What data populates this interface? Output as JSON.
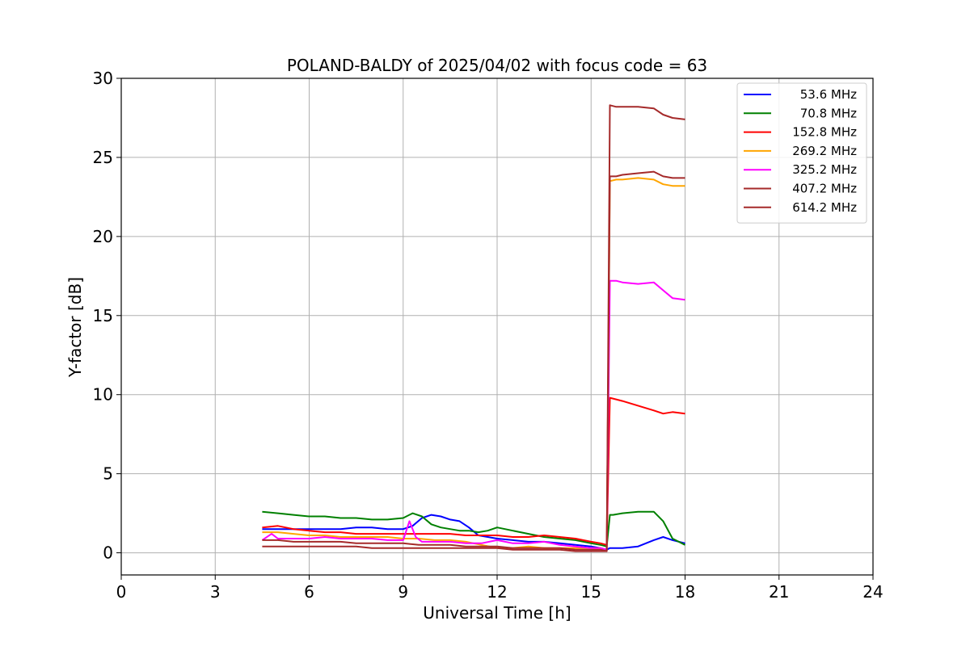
{
  "chart_data": {
    "type": "line",
    "title": "POLAND-BALDY of 2025/04/02 with focus code = 63",
    "xlabel": "Universal Time [h]",
    "ylabel": "Y-factor [dB]",
    "xlim": [
      0,
      24
    ],
    "ylim": [
      -1.4,
      30
    ],
    "xticks": [
      0,
      3,
      6,
      9,
      12,
      15,
      18,
      21,
      24
    ],
    "yticks": [
      0,
      5,
      10,
      15,
      20,
      25,
      30
    ],
    "grid": true,
    "legend_position": "top-right",
    "series": [
      {
        "name": "53.6 MHz",
        "color": "#0000ff",
        "x": [
          4.5,
          5.0,
          5.5,
          6.0,
          6.5,
          7.0,
          7.5,
          8.0,
          8.5,
          9.0,
          9.3,
          9.6,
          9.9,
          10.2,
          10.5,
          10.8,
          11.1,
          11.4,
          11.7,
          12.0,
          12.5,
          13.0,
          13.5,
          14.0,
          14.5,
          15.0,
          15.3,
          15.5,
          15.6,
          15.8,
          16.0,
          16.5,
          17.0,
          17.3,
          17.6,
          18.0
        ],
        "y": [
          1.5,
          1.5,
          1.5,
          1.5,
          1.5,
          1.5,
          1.6,
          1.6,
          1.5,
          1.5,
          1.7,
          2.2,
          2.4,
          2.3,
          2.1,
          2.0,
          1.6,
          1.1,
          1.0,
          0.9,
          0.8,
          0.7,
          0.7,
          0.6,
          0.5,
          0.4,
          0.3,
          0.2,
          0.3,
          0.3,
          0.3,
          0.4,
          0.8,
          1.0,
          0.8,
          0.6
        ]
      },
      {
        "name": "70.8 MHz",
        "color": "#008000",
        "x": [
          4.5,
          5.0,
          5.5,
          6.0,
          6.5,
          7.0,
          7.5,
          8.0,
          8.5,
          9.0,
          9.3,
          9.6,
          9.9,
          10.2,
          10.5,
          10.8,
          11.1,
          11.4,
          11.7,
          12.0,
          12.5,
          13.0,
          13.5,
          14.0,
          14.5,
          15.0,
          15.3,
          15.5,
          15.6,
          15.7,
          16.0,
          16.5,
          17.0,
          17.3,
          17.6,
          18.0
        ],
        "y": [
          2.6,
          2.5,
          2.4,
          2.3,
          2.3,
          2.2,
          2.2,
          2.1,
          2.1,
          2.2,
          2.5,
          2.3,
          1.8,
          1.6,
          1.5,
          1.4,
          1.4,
          1.3,
          1.4,
          1.6,
          1.4,
          1.2,
          1.0,
          0.9,
          0.8,
          0.6,
          0.5,
          0.4,
          2.4,
          2.4,
          2.5,
          2.6,
          2.6,
          2.0,
          0.9,
          0.5
        ]
      },
      {
        "name": "152.8 MHz",
        "color": "#ff0000",
        "x": [
          4.5,
          5.0,
          5.5,
          6.0,
          6.5,
          7.0,
          7.5,
          8.0,
          8.5,
          9.0,
          9.5,
          10.0,
          10.5,
          11.0,
          11.5,
          12.0,
          12.5,
          13.0,
          13.5,
          14.0,
          14.5,
          15.0,
          15.3,
          15.5,
          15.6,
          15.8,
          16.0,
          16.5,
          17.0,
          17.3,
          17.6,
          18.0
        ],
        "y": [
          1.6,
          1.7,
          1.5,
          1.4,
          1.3,
          1.3,
          1.2,
          1.2,
          1.2,
          1.2,
          1.2,
          1.2,
          1.2,
          1.1,
          1.1,
          1.1,
          1.0,
          1.0,
          1.1,
          1.0,
          0.9,
          0.7,
          0.6,
          0.5,
          9.8,
          9.7,
          9.6,
          9.3,
          9.0,
          8.8,
          8.9,
          8.8
        ]
      },
      {
        "name": "269.2 MHz",
        "color": "#ffa500",
        "x": [
          4.5,
          5.0,
          5.5,
          6.0,
          6.5,
          7.0,
          7.5,
          8.0,
          8.5,
          9.0,
          9.5,
          10.0,
          10.5,
          11.0,
          11.5,
          12.0,
          12.5,
          13.0,
          13.5,
          14.0,
          14.5,
          15.0,
          15.3,
          15.5,
          15.6,
          15.8,
          16.0,
          16.5,
          17.0,
          17.3,
          17.6,
          18.0
        ],
        "y": [
          1.3,
          1.3,
          1.2,
          1.1,
          1.1,
          1.0,
          1.0,
          1.0,
          1.0,
          0.9,
          0.9,
          0.8,
          0.8,
          0.7,
          0.5,
          0.3,
          0.3,
          0.4,
          0.3,
          0.3,
          0.3,
          0.3,
          0.3,
          0.2,
          23.5,
          23.6,
          23.6,
          23.7,
          23.6,
          23.3,
          23.2,
          23.2
        ]
      },
      {
        "name": "325.2 MHz",
        "color": "#ff00ff",
        "x": [
          4.5,
          4.8,
          5.0,
          5.5,
          6.0,
          6.5,
          7.0,
          7.5,
          8.0,
          8.5,
          9.0,
          9.2,
          9.4,
          9.6,
          10.0,
          10.5,
          11.0,
          11.5,
          12.0,
          12.5,
          13.0,
          13.5,
          14.0,
          14.5,
          15.0,
          15.3,
          15.5,
          15.6,
          15.8,
          16.0,
          16.5,
          17.0,
          17.3,
          17.6,
          18.0
        ],
        "y": [
          0.8,
          1.2,
          0.9,
          0.9,
          0.9,
          1.0,
          0.9,
          0.9,
          0.9,
          0.8,
          0.8,
          2.0,
          1.0,
          0.7,
          0.7,
          0.7,
          0.6,
          0.6,
          0.8,
          0.6,
          0.6,
          0.7,
          0.5,
          0.4,
          0.3,
          0.3,
          0.2,
          17.2,
          17.2,
          17.1,
          17.0,
          17.1,
          16.6,
          16.1,
          16.0
        ]
      },
      {
        "name": "407.2 MHz",
        "color": "#a52a2a",
        "x": [
          4.5,
          5.0,
          5.5,
          6.0,
          6.5,
          7.0,
          7.5,
          8.0,
          8.5,
          9.0,
          9.5,
          10.0,
          10.5,
          11.0,
          11.5,
          12.0,
          12.5,
          13.0,
          13.5,
          14.0,
          14.5,
          15.0,
          15.3,
          15.5,
          15.6,
          15.8,
          16.0,
          16.5,
          17.0,
          17.3,
          17.6,
          18.0
        ],
        "y": [
          0.8,
          0.8,
          0.7,
          0.7,
          0.7,
          0.7,
          0.6,
          0.6,
          0.6,
          0.6,
          0.5,
          0.5,
          0.5,
          0.4,
          0.4,
          0.4,
          0.3,
          0.3,
          0.3,
          0.3,
          0.2,
          0.2,
          0.2,
          0.1,
          23.8,
          23.8,
          23.9,
          24.0,
          24.1,
          23.8,
          23.7,
          23.7
        ]
      },
      {
        "name": "614.2 MHz",
        "color": "#a52a2a",
        "x": [
          4.5,
          5.0,
          5.5,
          6.0,
          6.5,
          7.0,
          7.5,
          8.0,
          8.5,
          9.0,
          9.5,
          10.0,
          10.5,
          11.0,
          11.5,
          12.0,
          12.5,
          13.0,
          13.5,
          14.0,
          14.5,
          15.0,
          15.3,
          15.5,
          15.6,
          15.8,
          16.0,
          16.5,
          17.0,
          17.3,
          17.6,
          18.0
        ],
        "y": [
          0.4,
          0.4,
          0.4,
          0.4,
          0.4,
          0.4,
          0.4,
          0.3,
          0.3,
          0.3,
          0.3,
          0.3,
          0.3,
          0.3,
          0.3,
          0.3,
          0.2,
          0.2,
          0.2,
          0.2,
          0.1,
          0.1,
          0.1,
          0.1,
          28.3,
          28.2,
          28.2,
          28.2,
          28.1,
          27.7,
          27.5,
          27.4
        ]
      }
    ]
  }
}
